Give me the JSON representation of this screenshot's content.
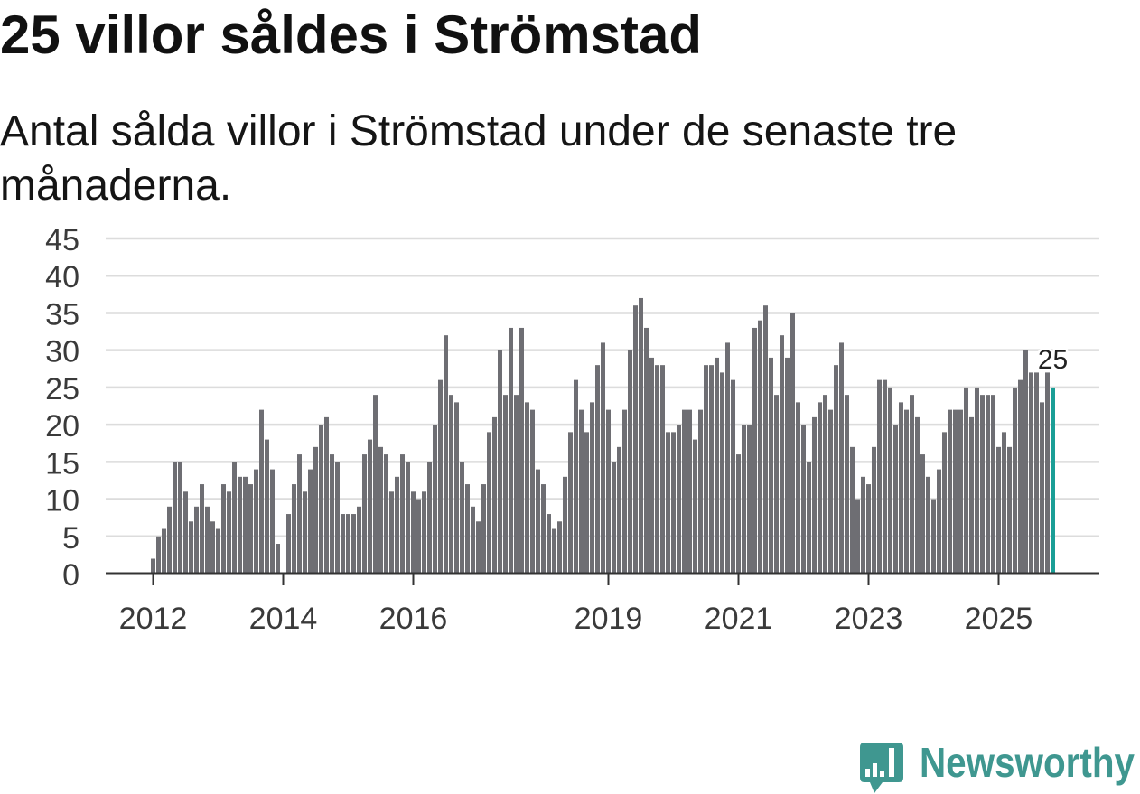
{
  "chart_data": {
    "type": "bar",
    "title": "25 villor såldes i Strömstad",
    "subtitle": "Antal sålda villor i Strömstad under de senaste tre månaderna.",
    "first_year": 2012,
    "first_month": 1,
    "values": [
      2,
      5,
      6,
      9,
      15,
      15,
      11,
      7,
      9,
      12,
      9,
      7,
      6,
      12,
      11,
      15,
      13,
      13,
      12,
      14,
      22,
      18,
      14,
      4,
      0,
      8,
      12,
      16,
      11,
      14,
      17,
      20,
      21,
      16,
      15,
      8,
      8,
      8,
      9,
      16,
      18,
      24,
      17,
      16,
      11,
      13,
      16,
      15,
      11,
      10,
      11,
      15,
      20,
      26,
      32,
      24,
      23,
      15,
      12,
      9,
      7,
      12,
      19,
      21,
      30,
      24,
      33,
      24,
      33,
      23,
      22,
      14,
      12,
      8,
      6,
      7,
      13,
      19,
      26,
      22,
      19,
      23,
      28,
      31,
      22,
      15,
      17,
      22,
      30,
      36,
      37,
      33,
      29,
      28,
      28,
      19,
      19,
      20,
      22,
      22,
      18,
      22,
      28,
      28,
      29,
      27,
      31,
      26,
      16,
      20,
      20,
      33,
      34,
      36,
      29,
      24,
      32,
      29,
      35,
      23,
      20,
      15,
      21,
      23,
      24,
      22,
      28,
      31,
      24,
      17,
      10,
      13,
      12,
      17,
      26,
      26,
      25,
      20,
      23,
      22,
      24,
      21,
      16,
      13,
      10,
      14,
      19,
      22,
      22,
      22,
      25,
      21,
      25,
      24,
      24,
      24,
      17,
      19,
      17,
      25,
      26,
      30,
      27,
      27,
      23,
      27,
      25
    ],
    "ylim": [
      0,
      45
    ],
    "yticks": [
      0,
      5,
      10,
      15,
      20,
      25,
      30,
      35,
      40,
      45
    ],
    "xticks": [
      {
        "label": "2012",
        "year": 2012
      },
      {
        "label": "2014",
        "year": 2014
      },
      {
        "label": "2016",
        "year": 2016
      },
      {
        "label": "2019",
        "year": 2019
      },
      {
        "label": "2021",
        "year": 2021
      },
      {
        "label": "2023",
        "year": 2023
      },
      {
        "label": "2025",
        "year": 2025
      }
    ],
    "highlight": {
      "label": "25",
      "value": 25,
      "color": "#1a9e96"
    },
    "bar_color": "#6e6e73",
    "grid": true,
    "grid_color": "#dcdcdc",
    "axis_color": "#333333"
  },
  "branding": {
    "name": "Newsworthy",
    "icon": "newsworthy-logo-icon",
    "color": "#3f9790"
  }
}
